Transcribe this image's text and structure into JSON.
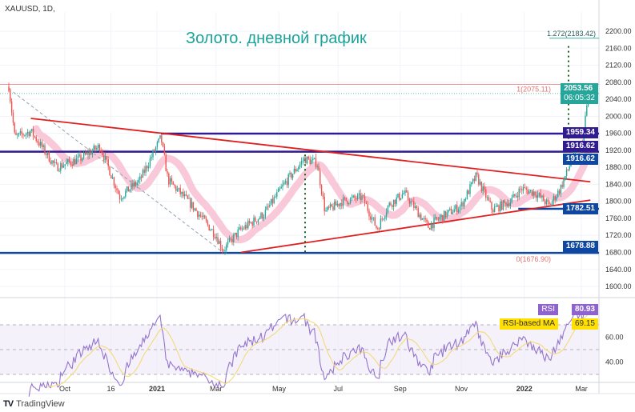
{
  "header": {
    "symbol": "XAUUSD, 1D,",
    "title": "Золото. дневной график"
  },
  "branding": {
    "name": "TradingView"
  },
  "colors": {
    "up": "#26a69a",
    "down": "#ef5350",
    "level": "#1a237e",
    "level_blue": "#0d47a1",
    "trend": "#e02020",
    "ma_band": "#f8bbd0",
    "rsi": "#9575cd",
    "rsi_ma": "#f5d76e",
    "title": "#1aa39a"
  },
  "chart_data": {
    "type": "candlestick",
    "symbol": "XAUUSD",
    "timeframe": "1D",
    "ylim": [
      1580,
      2230
    ],
    "price_ticks": [
      "2200.00",
      "2160.00",
      "2120.00",
      "2080.00",
      "2040.00",
      "2000.00",
      "1960.00",
      "1920.00",
      "1880.00",
      "1840.00",
      "1800.00",
      "1760.00",
      "1720.00",
      "1680.00",
      "1640.00",
      "1600.00"
    ],
    "x_ticks": [
      {
        "label": "Oct",
        "date": "2020-10-01"
      },
      {
        "label": "16",
        "date": "2020-11-16"
      },
      {
        "label": "2021",
        "date": "2021-01-01"
      },
      {
        "label": "Mar",
        "date": "2021-03-01"
      },
      {
        "label": "May",
        "date": "2021-05-03"
      },
      {
        "label": "Jul",
        "date": "2021-07-01"
      },
      {
        "label": "Sep",
        "date": "2021-09-01"
      },
      {
        "label": "Nov",
        "date": "2021-11-01"
      },
      {
        "label": "2022",
        "date": "2022-01-03"
      },
      {
        "label": "Mar",
        "date": "2022-03-01"
      }
    ],
    "close_path": [
      [
        "2020-08-06",
        2070
      ],
      [
        "2020-08-12",
        1950
      ],
      [
        "2020-08-28",
        1965
      ],
      [
        "2020-09-22",
        1880
      ],
      [
        "2020-10-16",
        1900
      ],
      [
        "2020-11-05",
        1930
      ],
      [
        "2020-11-25",
        1810
      ],
      [
        "2020-12-15",
        1850
      ],
      [
        "2021-01-05",
        1950
      ],
      [
        "2021-01-12",
        1850
      ],
      [
        "2021-02-05",
        1790
      ],
      [
        "2021-03-01",
        1720
      ],
      [
        "2021-03-08",
        1685
      ],
      [
        "2021-03-24",
        1730
      ],
      [
        "2021-04-18",
        1770
      ],
      [
        "2021-05-08",
        1840
      ],
      [
        "2021-05-28",
        1900
      ],
      [
        "2021-06-10",
        1890
      ],
      [
        "2021-06-18",
        1775
      ],
      [
        "2021-07-05",
        1800
      ],
      [
        "2021-07-25",
        1810
      ],
      [
        "2021-08-09",
        1735
      ],
      [
        "2021-08-20",
        1790
      ],
      [
        "2021-09-05",
        1820
      ],
      [
        "2021-09-29",
        1740
      ],
      [
        "2021-10-10",
        1760
      ],
      [
        "2021-11-01",
        1790
      ],
      [
        "2021-11-16",
        1860
      ],
      [
        "2021-12-02",
        1780
      ],
      [
        "2021-12-20",
        1800
      ],
      [
        "2021-12-31",
        1830
      ],
      [
        "2022-01-14",
        1820
      ],
      [
        "2022-01-28",
        1790
      ],
      [
        "2022-02-08",
        1830
      ],
      [
        "2022-02-20",
        1900
      ],
      [
        "2022-03-02",
        1935
      ],
      [
        "2022-03-08",
        2053.56
      ]
    ],
    "last_price": {
      "value": "2053.56",
      "countdown": "06:05:32"
    },
    "levels": [
      {
        "value": "1959.34",
        "color": "#311b92"
      },
      {
        "value": "1916.62",
        "color": "#311b92"
      },
      {
        "value": "1916.62",
        "color": "#0d47a1"
      },
      {
        "value": "1782.51",
        "color": "#0d47a1"
      },
      {
        "value": "1678.88",
        "color": "#0d47a1"
      }
    ],
    "fibonacci": [
      {
        "label": "1.272(2183.42)",
        "value": 2183.42
      },
      {
        "label": "1(2075.11)",
        "value": 2075.11
      },
      {
        "label": "0(1676.90)",
        "value": 1676.9
      }
    ],
    "trendlines": [
      {
        "from": [
          "2020-08-28",
          1995
        ],
        "to": [
          "2022-03-10",
          1846
        ]
      },
      {
        "from": [
          "2021-03-26",
          1680
        ],
        "to": [
          "2022-03-10",
          1803
        ]
      }
    ],
    "rsi": {
      "label": "RSI",
      "value": "80.93",
      "ma_label": "RSI-based MA",
      "ma_value": "69.15",
      "ticks": [
        "60.00",
        "40.00"
      ],
      "bands": [
        70,
        50,
        30
      ]
    }
  }
}
